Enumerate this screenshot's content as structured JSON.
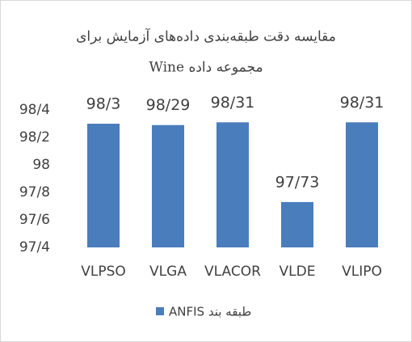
{
  "chart_data": {
    "type": "bar",
    "title": "مقایسه دقت طبقه‌بندی داده‌های آزمایش  برای",
    "subtitle": "مجموعه داده Wine",
    "categories": [
      "VLPSO",
      "VLGA",
      "VLACOR",
      "VLDE",
      "VLIPO"
    ],
    "series": [
      {
        "name": "طبقه بند ANFIS",
        "color": "#4a7dbb",
        "values": [
          98.3,
          98.29,
          98.31,
          97.73,
          98.31
        ],
        "value_labels": [
          "98/3",
          "98/29",
          "98/31",
          "97/73",
          "98/31"
        ]
      }
    ],
    "ylim": [
      97.4,
      98.4
    ],
    "yticks": [
      {
        "value": 97.4,
        "label": "97/4"
      },
      {
        "value": 97.6,
        "label": "97/6"
      },
      {
        "value": 97.8,
        "label": "97/8"
      },
      98,
      {
        "value": 98.2,
        "label": "98/2"
      },
      {
        "value": 98.4,
        "label": "98/4"
      }
    ],
    "grid": false,
    "legend": "bottom"
  }
}
